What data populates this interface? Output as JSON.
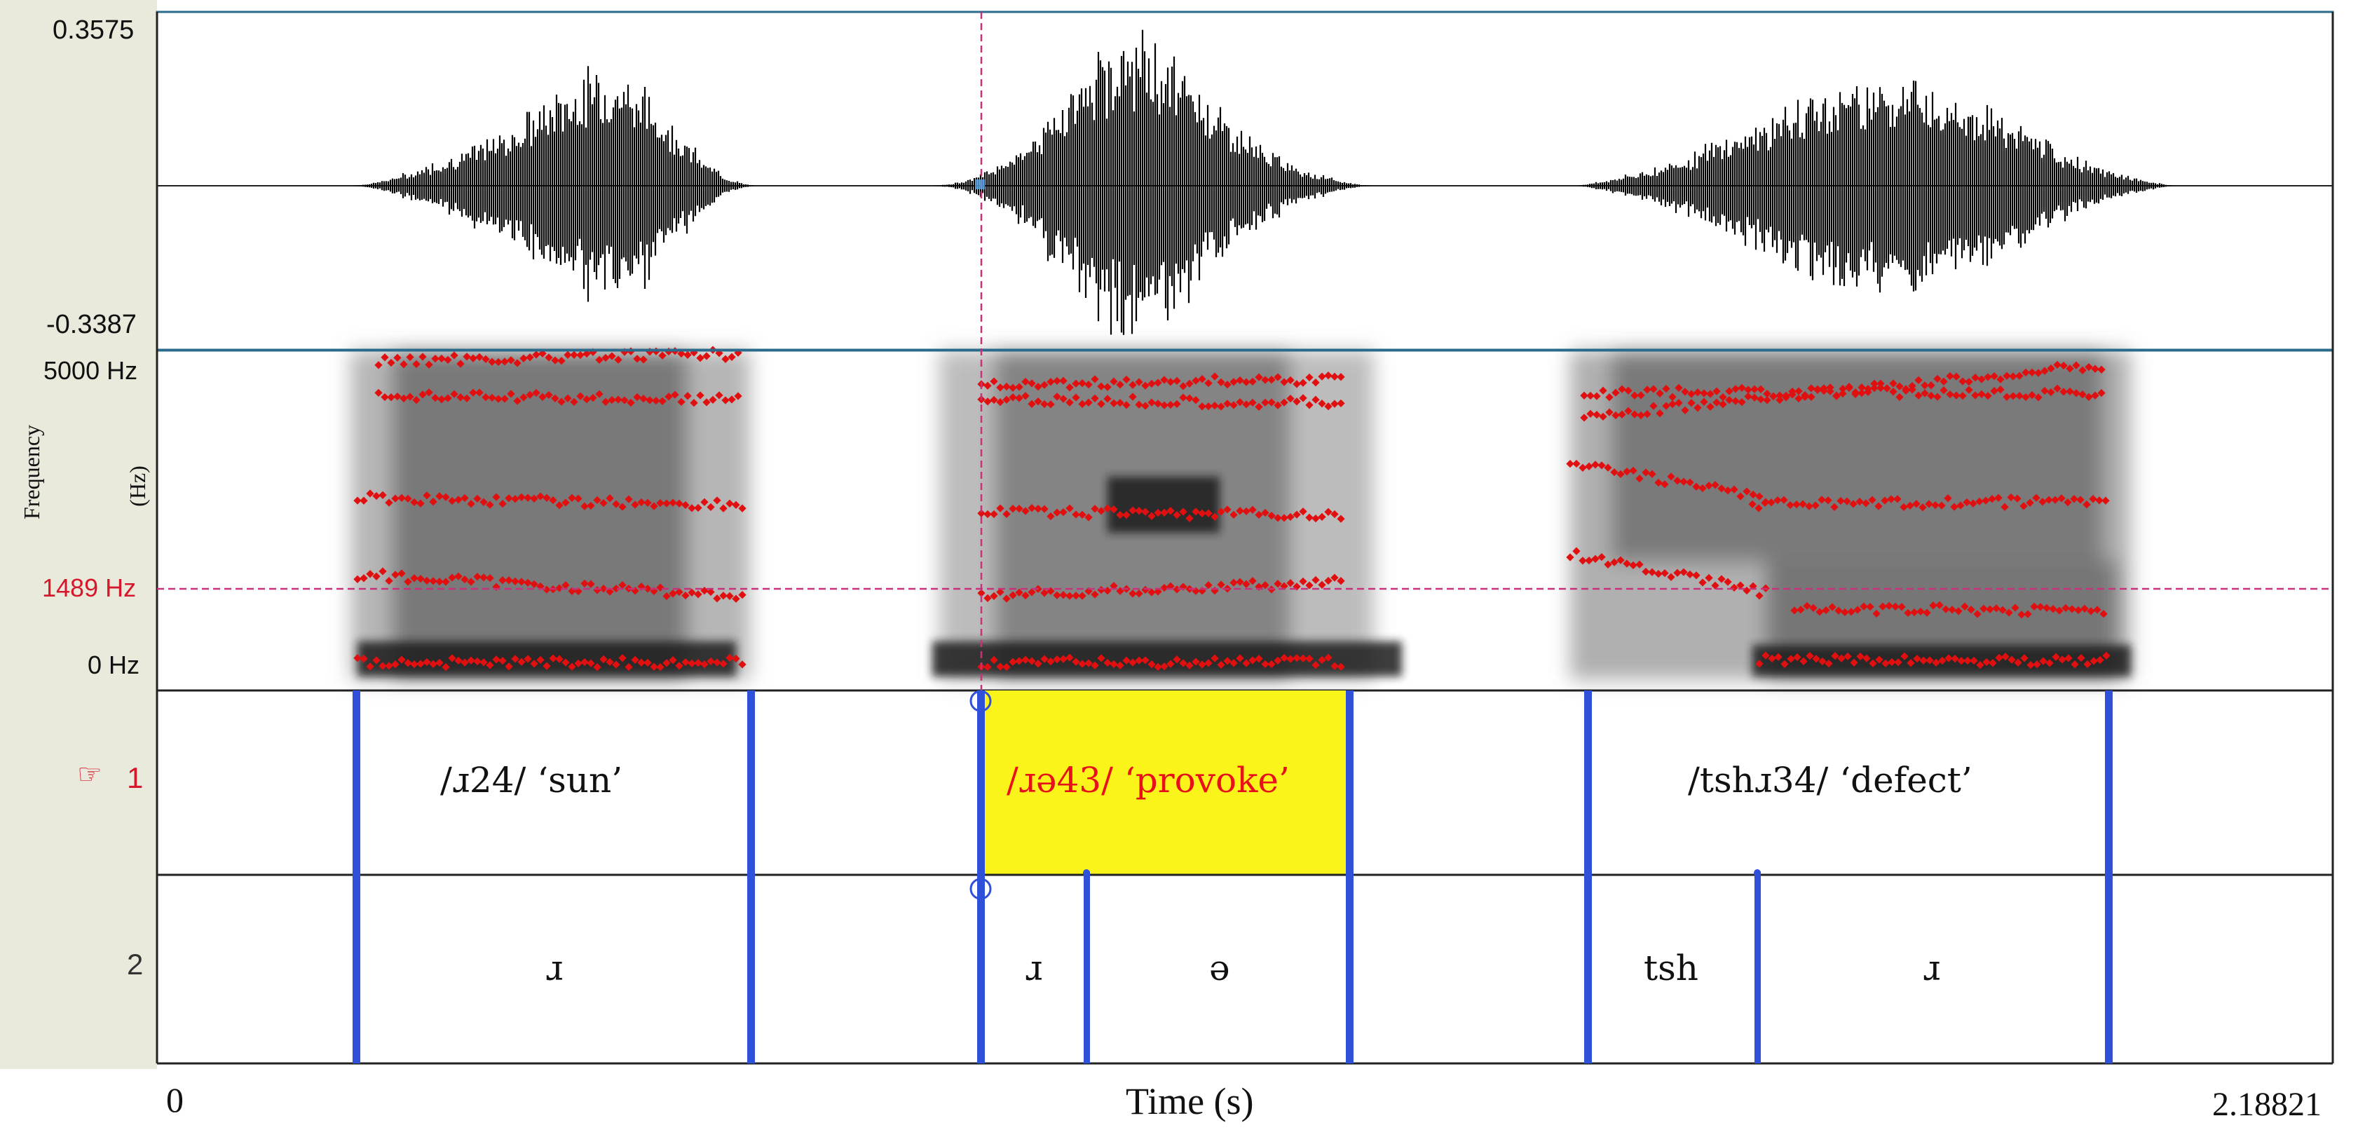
{
  "waveform": {
    "max_label": "0.3575",
    "min_label": "-0.3387"
  },
  "spectrogram": {
    "top_label": "5000 Hz",
    "cursor_label": "1489 Hz",
    "bottom_label": "0 Hz",
    "ylabel_line1": "Frequency",
    "ylabel_line2": "(Hz)"
  },
  "tiers": [
    {
      "number": "1",
      "selected": true,
      "pointer": "☞",
      "intervals": [
        "/ɹ24/ ‘sun’",
        "/ɹə43/ ‘provoke’",
        "/tshɹ34/ ‘defect’"
      ]
    },
    {
      "number": "2",
      "selected": false,
      "intervals": [
        "ɹ",
        "ɹ",
        "ə",
        "tsh",
        "ɹ"
      ]
    }
  ],
  "time_axis": {
    "start": "0",
    "label": "Time (s)",
    "end": "2.18821"
  },
  "colors": {
    "boundary": "#2f50d8",
    "selection": "#fbf41a",
    "formant": "#e01010",
    "cursor": "#c8327a",
    "selected_text": "#e8101a"
  }
}
